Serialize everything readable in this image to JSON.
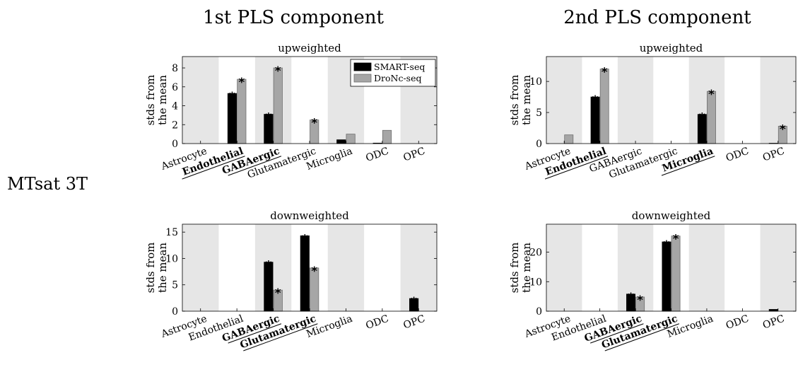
{
  "figure": {
    "col_titles": [
      "1st PLS component",
      "2nd PLS component"
    ],
    "row_label": "MTsat 3T",
    "ylabel_lines": [
      "stds from",
      "the mean"
    ]
  },
  "legend": {
    "entries": [
      {
        "label": "SMART-seq",
        "color": "#000000"
      },
      {
        "label": "DroNc-seq",
        "color": "#a6a6a6"
      }
    ]
  },
  "colors": {
    "shade": "#e6e6e6",
    "smart": "#000000",
    "dronc": "#a6a6a6"
  },
  "chart_data": [
    {
      "type": "bar",
      "title": "upweighted",
      "component": "1st PLS component",
      "ylabel": "stds from the mean",
      "categories": [
        "Astrocyte",
        "Endothelial",
        "GABAergic",
        "Glutamatergic",
        "Microglia",
        "ODC",
        "OPC"
      ],
      "highlighted": [
        "Endothelial",
        "GABAergic"
      ],
      "series": [
        {
          "name": "SMART-seq",
          "values": [
            0,
            5.3,
            3.1,
            0,
            0.4,
            0.05,
            0
          ],
          "significant": [
            false,
            true,
            true,
            false,
            false,
            false,
            false
          ]
        },
        {
          "name": "DroNc-seq",
          "values": [
            0,
            6.8,
            8.0,
            2.5,
            1.0,
            1.4,
            0
          ],
          "significant": [
            false,
            true,
            true,
            true,
            false,
            false,
            false
          ]
        }
      ],
      "ylim": [
        0,
        9.2
      ],
      "yticks": [
        0,
        2,
        4,
        6,
        8
      ],
      "legend_position": "top-right"
    },
    {
      "type": "bar",
      "title": "upweighted",
      "component": "2nd PLS component",
      "ylabel": "stds from the mean",
      "categories": [
        "Astrocyte",
        "Endothelial",
        "GABAergic",
        "Glutamatergic",
        "Microglia",
        "ODC",
        "OPC"
      ],
      "highlighted": [
        "Endothelial",
        "Microglia"
      ],
      "series": [
        {
          "name": "SMART-seq",
          "values": [
            0,
            7.5,
            0,
            0,
            4.7,
            0,
            0.05
          ],
          "significant": [
            false,
            true,
            false,
            false,
            true,
            false,
            false
          ]
        },
        {
          "name": "DroNc-seq",
          "values": [
            1.4,
            12.0,
            0,
            0,
            8.4,
            0,
            2.8
          ],
          "significant": [
            false,
            true,
            false,
            false,
            true,
            false,
            true
          ]
        }
      ],
      "ylim": [
        0,
        14
      ],
      "yticks": [
        0,
        5,
        10
      ]
    },
    {
      "type": "bar",
      "title": "downweighted",
      "component": "1st PLS component",
      "ylabel": "stds from the mean",
      "categories": [
        "Astrocyte",
        "Endothelial",
        "GABAergic",
        "Glutamatergic",
        "Microglia",
        "ODC",
        "OPC"
      ],
      "highlighted": [
        "GABAergic",
        "Glutamatergic"
      ],
      "series": [
        {
          "name": "SMART-seq",
          "values": [
            0,
            0,
            9.3,
            14.3,
            0,
            0,
            2.4
          ],
          "significant": [
            false,
            false,
            true,
            true,
            false,
            false,
            true
          ]
        },
        {
          "name": "DroNc-seq",
          "values": [
            0,
            0,
            4.0,
            8.2,
            0,
            0,
            0
          ],
          "significant": [
            false,
            false,
            true,
            true,
            false,
            false,
            false
          ]
        }
      ],
      "ylim": [
        0,
        16.5
      ],
      "yticks": [
        0,
        5,
        10,
        15
      ]
    },
    {
      "type": "bar",
      "title": "downweighted",
      "component": "2nd PLS component",
      "ylabel": "stds from the mean",
      "categories": [
        "Astrocyte",
        "Endothelial",
        "GABAergic",
        "Glutamatergic",
        "Microglia",
        "ODC",
        "OPC"
      ],
      "highlighted": [
        "GABAergic",
        "Glutamatergic"
      ],
      "series": [
        {
          "name": "SMART-seq",
          "values": [
            0,
            0,
            5.8,
            23.5,
            0,
            0,
            0.6
          ],
          "significant": [
            false,
            false,
            true,
            true,
            false,
            false,
            false
          ]
        },
        {
          "name": "DroNc-seq",
          "values": [
            0,
            0,
            4.8,
            25.5,
            0,
            0,
            0
          ],
          "significant": [
            false,
            false,
            true,
            true,
            false,
            false,
            false
          ]
        }
      ],
      "ylim": [
        0,
        29.5
      ],
      "yticks": [
        0,
        10,
        20
      ]
    }
  ]
}
